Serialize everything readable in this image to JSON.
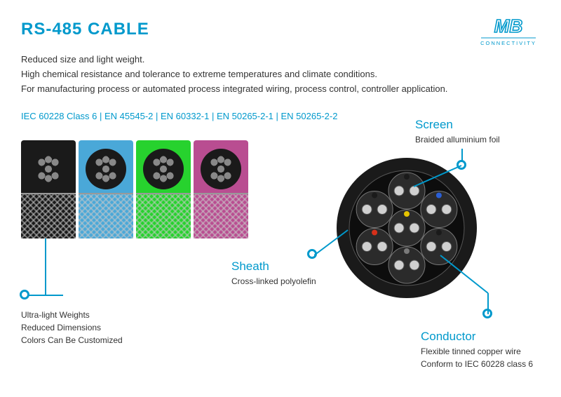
{
  "title": "RS-485 CABLE",
  "logo": {
    "brand_top": "MB",
    "brand_bottom": "CONNECTIVITY",
    "color": "#0099cc"
  },
  "description": {
    "line1": "Reduced size and light weight.",
    "line2": "High chemical resistance and tolerance to extreme temperatures and climate conditions.",
    "line3": "For manufacturing process or automated process integrated wiring, process control, controller application."
  },
  "standards": "IEC 60228 Class 6 | EN 45545-2 | EN 60332-1 | EN 50265-2-1 | EN 50265-2-2",
  "colors": {
    "accent": "#0099cc",
    "text": "#333333",
    "background": "#ffffff",
    "cable_outer": "#1a1a1a",
    "conductor": "#888888"
  },
  "cable_variants": [
    {
      "name": "black",
      "jacket_color": "#1a1a1a"
    },
    {
      "name": "blue",
      "jacket_color": "#4aa8d8"
    },
    {
      "name": "green",
      "jacket_color": "#27d22e"
    },
    {
      "name": "magenta",
      "jacket_color": "#b94d91"
    }
  ],
  "left_callout": {
    "lines": [
      "Ultra-light Weights",
      "Reduced Dimensions",
      "Colors Can Be Customized"
    ]
  },
  "cross_section": {
    "outer_color": "#1a1a1a",
    "outer_radius": 100,
    "inner_radius": 82,
    "pair_radius": 26,
    "wire_radius": 7,
    "pairs": [
      {
        "angle": 90,
        "accent": "#1a1a1a"
      },
      {
        "angle": 30,
        "accent": "#2a5fd6"
      },
      {
        "angle": -30,
        "accent": "#1a1a1a"
      },
      {
        "angle": -90,
        "accent": "#7a7a7a"
      },
      {
        "angle": -150,
        "accent": "#d6301a"
      },
      {
        "angle": 150,
        "accent": "#1a1a1a"
      }
    ],
    "center_pair_accent": "#e6c400"
  },
  "annotations": {
    "screen": {
      "title": "Screen",
      "subtitle": "Braided alluminium foil"
    },
    "sheath": {
      "title": "Sheath",
      "subtitle": "Cross-linked polyolefin"
    },
    "conductor": {
      "title": "Conductor",
      "subtitle1": "Flexible tinned copper wire",
      "subtitle2": "Conform to IEC 60228 class 6"
    }
  }
}
